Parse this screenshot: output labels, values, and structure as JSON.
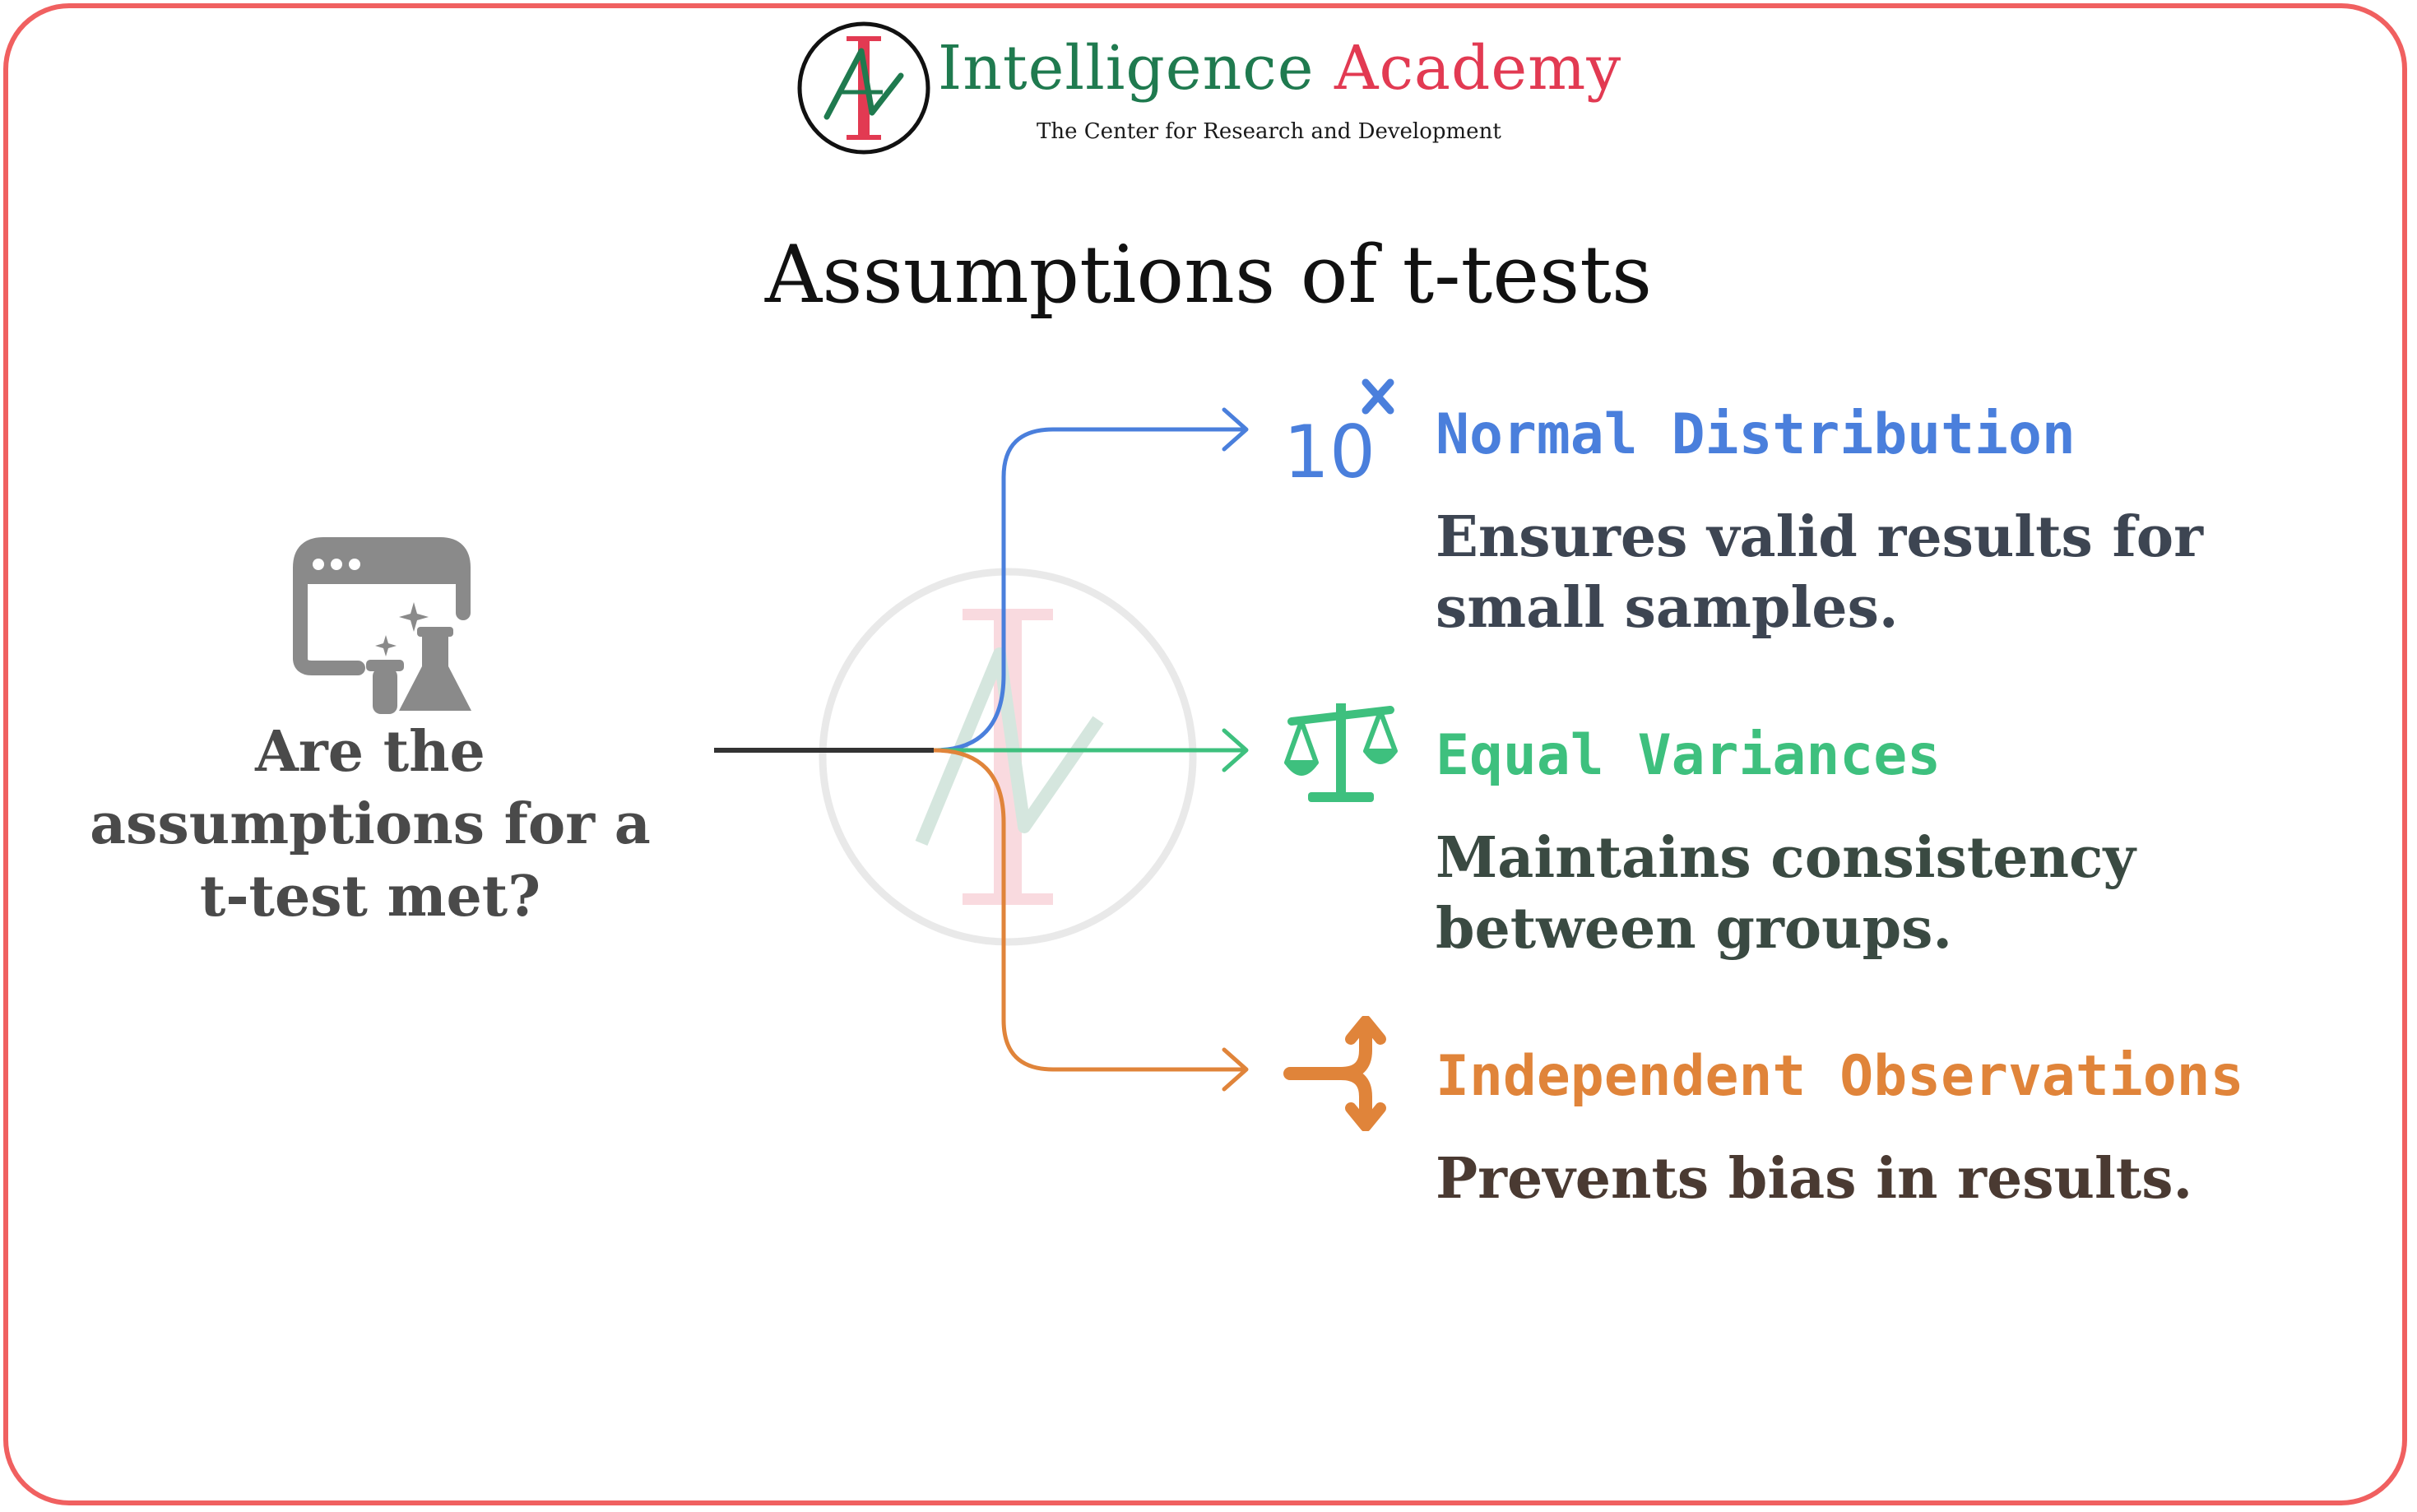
{
  "brand": {
    "name_part1": "Intelligence",
    "name_part2": "Academy",
    "tagline": "The Center for Research and Development",
    "colors": {
      "green": "#1f7a4f",
      "red": "#e23a52"
    }
  },
  "title": "Assumptions of t-tests",
  "question": {
    "text": "Are the assumptions for a t-test met?",
    "icon": "lab-window-icon"
  },
  "branches": [
    {
      "heading": "Normal Distribution",
      "description": "Ensures valid results for small samples.",
      "icon": "ten-power-x-icon",
      "color": "#4a7fdc"
    },
    {
      "heading": "Equal Variances",
      "description": "Maintains consistency between groups.",
      "icon": "balance-scale-icon",
      "color": "#3ec07e"
    },
    {
      "heading": "Independent Observations",
      "description": "Prevents bias in results.",
      "icon": "split-arrow-icon",
      "color": "#e0843a"
    }
  ],
  "frame_color": "#f06060"
}
